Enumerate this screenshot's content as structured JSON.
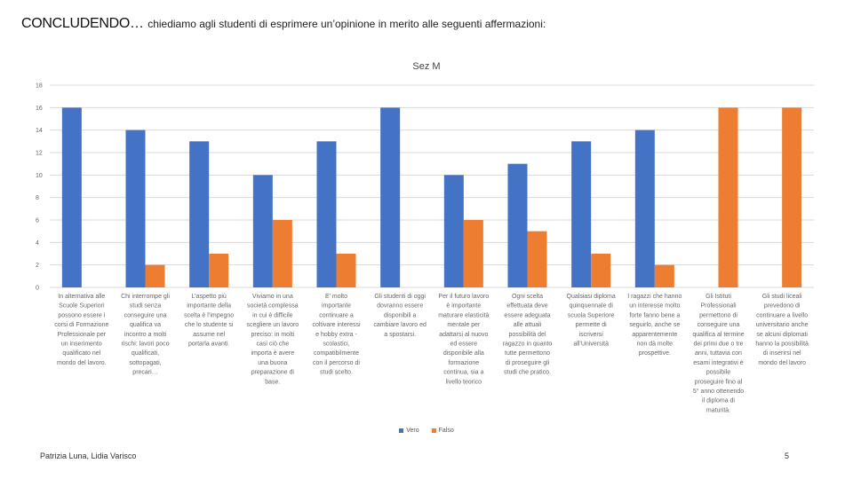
{
  "heading": {
    "main": "CONCLUDENDO…",
    "sub": "chiediamo agli studenti di esprimere un’opinione in merito alle seguenti affermazioni:"
  },
  "footer": {
    "author": "Patrizia Luna, Lidia Varisco",
    "page": "5"
  },
  "colors": {
    "vero": "#4472C4",
    "falso": "#ED7D31",
    "grid": "#D9D9D9"
  },
  "chart_data": {
    "type": "bar",
    "title": "Sez M",
    "xlabel": "",
    "ylabel": "",
    "ylim": [
      0,
      18
    ],
    "yticks": [
      0,
      2,
      4,
      6,
      8,
      10,
      12,
      14,
      16,
      18
    ],
    "grid": true,
    "legend_position": "bottom",
    "categories": [
      [
        "In alternativa alle",
        "Scuole Superiori",
        "possono essere i",
        "corsi di Formazione",
        "Professionale per",
        "un inserimento",
        "qualificato nel",
        "mondo del lavoro."
      ],
      [
        "Chi interrompe gli",
        "studi senza",
        "conseguire una",
        "qualifica va",
        "incontro a molti",
        "rischi: lavori poco",
        "qualificati,",
        "sottopagati,",
        "precari…"
      ],
      [
        "L’aspetto più",
        "importante della",
        "scelta è l’impegno",
        "che lo studente si",
        "assume nel",
        "portarla avanti."
      ],
      [
        "Viviamo in una",
        "società complessa",
        "in cui è difficile",
        "scegliere un lavoro",
        "preciso: in molti",
        "casi ciò che",
        "importa è avere",
        "una buona",
        "preparazione di",
        "base."
      ],
      [
        "E’ molto",
        "importante",
        "continuare a",
        "coltivare interessi",
        "e hobby extra -",
        "scolastici,",
        "compatibilmente",
        "con il percorso di",
        "studi scelto."
      ],
      [
        "Gli studenti di oggi",
        "dovranno essere",
        "disponibili a",
        "cambiare lavoro ed",
        "a spostarsi."
      ],
      [
        "Per il futuro lavoro",
        "è importante",
        "maturare elasticità",
        "mentale per",
        "adattarsi al nuovo",
        "ed essere",
        "disponibile alla",
        "formazione",
        "continua, sia a",
        "livello teorico"
      ],
      [
        "Ogni scelta",
        "effettuata deve",
        "essere adeguata",
        "alle attuali",
        "possibilità del",
        "ragazzo in quanto",
        "tutte permettono",
        "di proseguire gli",
        "studi che pratico."
      ],
      [
        "Qualsiasi diploma",
        "quinquennale di",
        "scuola Superiore",
        "permette di",
        "iscriversi",
        "all’Università"
      ],
      [
        "I ragazzi che hanno",
        "un interesse molto",
        "forte fanno bene a",
        "seguirlo, anche se",
        "apparentemente",
        "non dà molte",
        "prospettive."
      ],
      [
        "Gli Istituti",
        "Professionali",
        "permettono di",
        "conseguire una",
        "qualifica al termine",
        "dei primi due o tre",
        "anni, tuttavia con",
        "esami integrativi è",
        "possibile",
        "proseguire fino al",
        "5° anno ottenendo",
        "il diploma di",
        "maturità."
      ],
      [
        "Gli studi liceali",
        "prevedono di",
        "continuare a livello",
        "universitario anche",
        "se alcuni diplomati",
        "hanno la possibilità",
        "di inserirsi nel",
        "mondo del lavoro"
      ]
    ],
    "series": [
      {
        "name": "Vero",
        "values": [
          16,
          14,
          13,
          10,
          13,
          16,
          10,
          11,
          13,
          14,
          0,
          0
        ]
      },
      {
        "name": "Falso",
        "values": [
          0,
          2,
          3,
          6,
          3,
          0,
          6,
          5,
          3,
          2,
          16,
          16
        ]
      }
    ]
  }
}
